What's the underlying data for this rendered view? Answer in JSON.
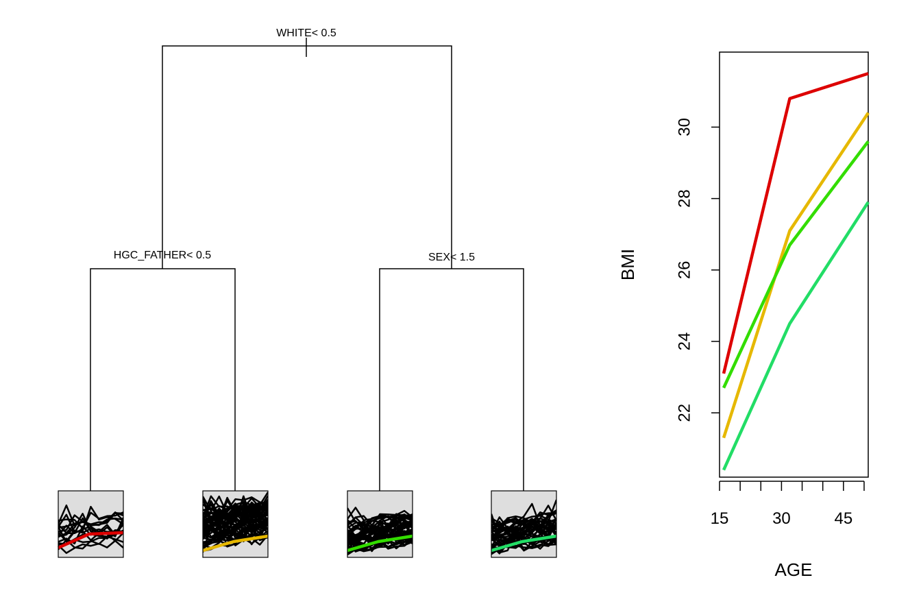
{
  "tree": {
    "root": {
      "split": "WHITE< 0.5"
    },
    "left": {
      "split": "HGC_FATHER< 0.5"
    },
    "right": {
      "split": "SEX< 1.5"
    },
    "leaves": [
      {
        "color": "#dd0000"
      },
      {
        "color": "#e6b800"
      },
      {
        "color": "#33dd00"
      },
      {
        "color": "#22dd66"
      }
    ]
  },
  "chart_data": {
    "type": "line",
    "xlabel": "AGE",
    "ylabel": "BMI",
    "x": [
      16,
      32,
      51
    ],
    "xlim": [
      15,
      51
    ],
    "ylim": [
      20.2,
      32.1
    ],
    "xticks": [
      15,
      30,
      45
    ],
    "xminor_step": 5,
    "yticks": [
      22,
      24,
      26,
      28,
      30
    ],
    "grid": false,
    "legend": "none",
    "series": [
      {
        "color": "#dd0000",
        "values": [
          23.1,
          30.8,
          31.5
        ]
      },
      {
        "color": "#e6b800",
        "values": [
          21.3,
          27.1,
          30.4
        ]
      },
      {
        "color": "#33dd00",
        "values": [
          22.7,
          26.7,
          29.6
        ]
      },
      {
        "color": "#22dd66",
        "values": [
          20.4,
          24.5,
          27.9
        ]
      }
    ]
  }
}
